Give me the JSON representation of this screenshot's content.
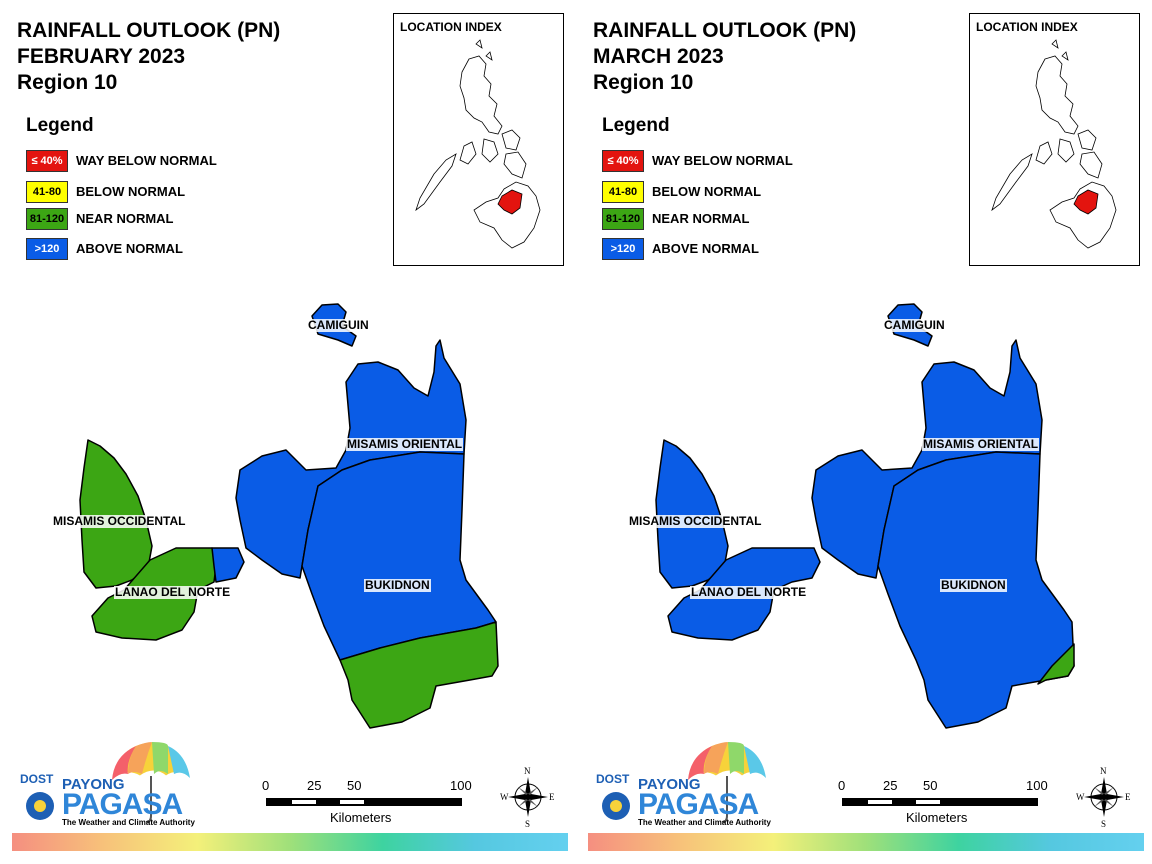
{
  "panels": [
    {
      "title_line1": "RAINFALL OUTLOOK (PN)",
      "title_line2": "FEBRUARY 2023",
      "title_line3": "Region 10",
      "provinces": {
        "camiguin": {
          "name": "CAMIGUIN",
          "category": "above"
        },
        "misamis_oriental": {
          "name": "MISAMIS ORIENTAL",
          "category": "above"
        },
        "misamis_occidental": {
          "name": "MISAMIS OCCIDENTAL",
          "category": "near"
        },
        "lanao_del_norte": {
          "name": "LANAO DEL NORTE",
          "category": "near"
        },
        "bukidnon": {
          "name": "BUKIDNON",
          "category": "above",
          "south_part_category": "near"
        }
      }
    },
    {
      "title_line1": "RAINFALL OUTLOOK (PN)",
      "title_line2": "MARCH 2023",
      "title_line3": "Region 10",
      "provinces": {
        "camiguin": {
          "name": "CAMIGUIN",
          "category": "above"
        },
        "misamis_oriental": {
          "name": "MISAMIS ORIENTAL",
          "category": "above"
        },
        "misamis_occidental": {
          "name": "MISAMIS OCCIDENTAL",
          "category": "above"
        },
        "lanao_del_norte": {
          "name": "LANAO DEL NORTE",
          "category": "above"
        },
        "bukidnon": {
          "name": "BUKIDNON",
          "category": "above",
          "south_part_category": "near"
        }
      }
    }
  ],
  "legend": {
    "title": "Legend",
    "items": [
      {
        "range": "≤ 40%",
        "label": "WAY BELOW NORMAL",
        "color": "#e3140f",
        "text_color": "#ffffff"
      },
      {
        "range": "41-80",
        "label": "BELOW NORMAL",
        "color": "#ffff00",
        "text_color": "#000000"
      },
      {
        "range": "81-120",
        "label": "NEAR NORMAL",
        "color": "#3ca614",
        "text_color": "#000000"
      },
      {
        "range": ">120",
        "label": "ABOVE NORMAL",
        "color": "#0a5ce6",
        "text_color": "#ffffff"
      }
    ]
  },
  "location_index": {
    "title": "LOCATION INDEX",
    "highlight_color": "#e3140f"
  },
  "logo": {
    "dost": "DOST",
    "payong": "PAYONG",
    "pagasa": "PAGASA",
    "tagline": "The Weather and Climate Authority"
  },
  "scale": {
    "ticks": [
      "0",
      "25",
      "50",
      "100"
    ],
    "unit": "Kilometers"
  },
  "compass": {
    "n": "N",
    "s": "S",
    "e": "E",
    "w": "W",
    "icon": "compass-rose-icon"
  }
}
